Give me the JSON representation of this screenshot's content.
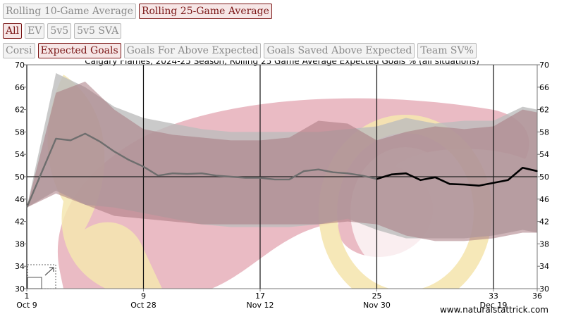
{
  "controls": {
    "window": [
      {
        "label": "Rolling 10-Game Average",
        "active": false
      },
      {
        "label": "Rolling 25-Game Average",
        "active": true
      }
    ],
    "situation": [
      {
        "label": "All",
        "active": true
      },
      {
        "label": "EV",
        "active": false
      },
      {
        "label": "5v5",
        "active": false
      },
      {
        "label": "5v5 SVA",
        "active": false
      }
    ],
    "metric": [
      {
        "label": "Corsi",
        "active": false
      },
      {
        "label": "Expected Goals",
        "active": true
      },
      {
        "label": "Goals For Above Expected",
        "active": false
      },
      {
        "label": "Goals Saved Above Expected",
        "active": false
      },
      {
        "label": "Team SV%",
        "active": false
      }
    ]
  },
  "colors": {
    "line_dark": "#000000",
    "line_faded": "#6e6e6e",
    "band_gray": "#bdbdbd",
    "band_maroon": "#a87880",
    "watermark_red": "#e8b4be",
    "watermark_yellow": "#f5e6b0",
    "active_button": "#7a1515"
  },
  "chart_data": {
    "type": "line",
    "title": "Calgary Flames, 2024-25 Season, Rolling 25 Game Average Expected Goals % (all situations)",
    "ylim": [
      30,
      70
    ],
    "xlim": [
      1,
      36
    ],
    "yticks": [
      30,
      34,
      38,
      42,
      46,
      50,
      54,
      58,
      62,
      66,
      70
    ],
    "xticks": [
      {
        "game": 1,
        "date": "Oct 9"
      },
      {
        "game": 9,
        "date": "Oct 28"
      },
      {
        "game": 17,
        "date": "Nov 12"
      },
      {
        "game": 25,
        "date": "Nov 30"
      },
      {
        "game": 33,
        "date": "Dec 19"
      },
      {
        "game": 36,
        "date": ""
      }
    ],
    "baseline": 50,
    "faded_until_game": 25,
    "series": [
      {
        "x": [
          1,
          3,
          4,
          5,
          6,
          7,
          8,
          9,
          10,
          11,
          12,
          13,
          14,
          15,
          16,
          17,
          18,
          19,
          20,
          21,
          22,
          23,
          24,
          25,
          26,
          27,
          28,
          29,
          30,
          31,
          32,
          33,
          34,
          35,
          36
        ],
        "values": [
          44.5,
          56.8,
          56.5,
          57.7,
          56.3,
          54.5,
          53.0,
          51.8,
          50.2,
          50.6,
          50.5,
          50.6,
          50.2,
          50.0,
          49.8,
          49.8,
          49.5,
          49.5,
          51.0,
          51.3,
          50.8,
          50.6,
          50.2,
          49.6,
          50.4,
          50.6,
          49.4,
          49.9,
          48.7,
          48.6,
          48.4,
          48.9,
          49.4,
          51.6,
          51.0
        ]
      }
    ],
    "band_gray": {
      "x": [
        1,
        3,
        5,
        7,
        9,
        11,
        13,
        15,
        17,
        19,
        21,
        23,
        25,
        27,
        29,
        31,
        33,
        35,
        36
      ],
      "upper": [
        44.5,
        68.5,
        66.0,
        62.5,
        60.5,
        59.5,
        58.5,
        58.0,
        58.0,
        58.0,
        58.0,
        58.5,
        59.0,
        60.5,
        59.5,
        60.0,
        60.0,
        62.5,
        62.0
      ],
      "lower": [
        44.5,
        47.5,
        45.0,
        44.5,
        43.5,
        42.5,
        41.5,
        41.0,
        41.0,
        41.0,
        41.5,
        42.5,
        40.5,
        39.0,
        39.0,
        39.0,
        39.5,
        40.5,
        40.0
      ]
    },
    "band_maroon": {
      "x": [
        1,
        3,
        5,
        7,
        9,
        11,
        13,
        15,
        17,
        19,
        21,
        23,
        25,
        27,
        29,
        31,
        33,
        35,
        36
      ],
      "upper": [
        44.5,
        65.0,
        67.0,
        62.0,
        58.5,
        57.5,
        57.0,
        56.5,
        56.5,
        57.0,
        60.0,
        59.5,
        56.5,
        58.0,
        59.0,
        58.5,
        59.0,
        62.0,
        61.5
      ],
      "lower": [
        44.5,
        47.0,
        45.0,
        43.0,
        42.5,
        42.0,
        41.5,
        41.5,
        41.5,
        41.5,
        41.5,
        42.0,
        41.5,
        39.5,
        38.5,
        38.5,
        39.0,
        40.0,
        40.0
      ]
    }
  },
  "credit": "www.naturalstattrick.com"
}
